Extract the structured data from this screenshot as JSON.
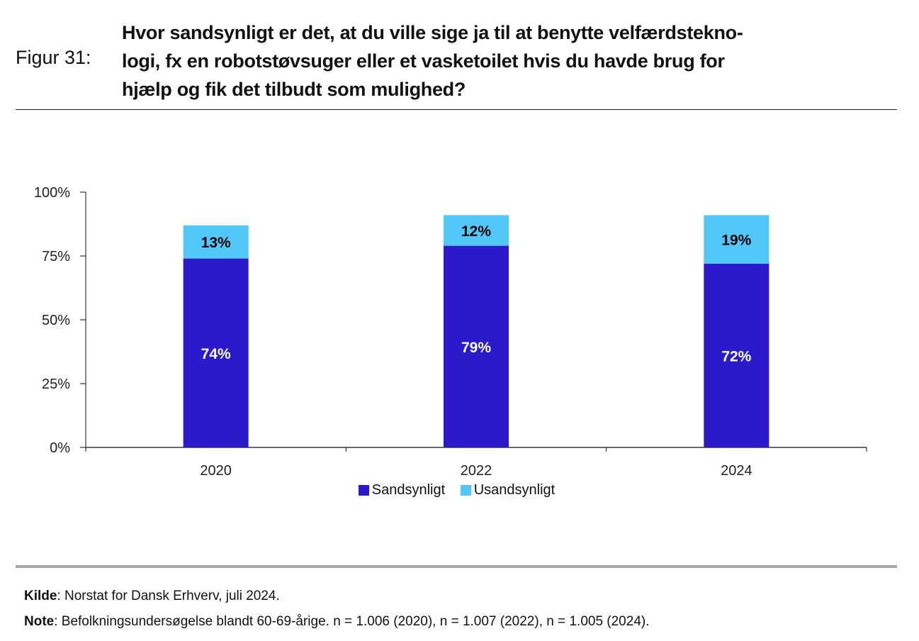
{
  "figure": {
    "label": "Figur 31:",
    "title": "Hvor sandsynligt er det, at du ville sige ja til at benytte velfærdstekno-logi, fx en robotstøvsuger eller et vasketoilet hvis du havde brug for hjælp og fik det tilbudt som mulighed?",
    "title_lines": [
      "Hvor sandsynligt er det, at du ville sige ja til at benytte velfærdstekno-",
      "logi, fx en robotstøvsuger eller et vasketoilet hvis du havde brug for",
      "hjælp og fik det tilbudt som mulighed?"
    ]
  },
  "footer": {
    "source_label": "Kilde",
    "source_text": ": Norstat for Dansk Erhverv, juli 2024.",
    "note_label": "Note",
    "note_text": ": Befolkningsundersøgelse blandt 60-69-årige. n = 1.006 (2020), n = 1.007 (2022), n = 1.005 (2024)."
  },
  "chart_data": {
    "type": "bar",
    "stacked": true,
    "title": "Hvor sandsynligt er det, at du ville sige ja til at benytte velfærdsteknologi, fx en robotstøvsuger eller et vasketoilet hvis du havde brug for hjælp og fik det tilbudt som mulighed?",
    "xlabel": "",
    "ylabel": "",
    "categories": [
      "2020",
      "2022",
      "2024"
    ],
    "series": [
      {
        "name": "Sandsynligt",
        "color": "#2b1acc",
        "label_color": "#ffffff",
        "values": [
          74,
          79,
          72
        ],
        "labels": [
          "74%",
          "79%",
          "72%"
        ]
      },
      {
        "name": "Usandsynligt",
        "color": "#52c8f8",
        "label_color": "#000000",
        "values": [
          13,
          12,
          19
        ],
        "labels": [
          "13%",
          "12%",
          "19%"
        ]
      }
    ],
    "ylim": [
      0,
      100
    ],
    "yticks": [
      0,
      25,
      50,
      75,
      100
    ],
    "ytick_labels": [
      "0%",
      "25%",
      "50%",
      "75%",
      "100%"
    ],
    "grid": false,
    "legend_position": "bottom"
  }
}
